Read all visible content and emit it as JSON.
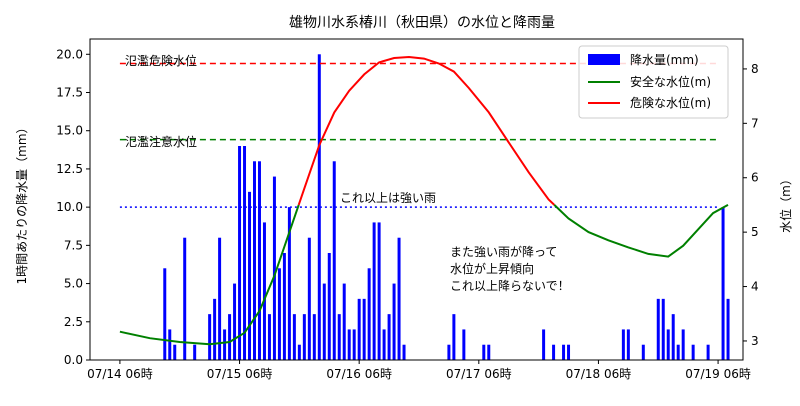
{
  "chart_data": {
    "type": "bar+line",
    "title": "雄物川水系椿川（秋田県）の水位と降雨量",
    "ylabel_left": "1時間あたりの降水量（mm）",
    "ylabel_right": "水位（m）",
    "ylim_left": [
      0,
      21
    ],
    "ylim_right": [
      2.65,
      8.55
    ],
    "xlim_hours": [
      -6,
      125
    ],
    "x_tick_labels": [
      "07/14 06時",
      "07/15 06時",
      "07/16 06時",
      "07/17 06時",
      "07/18 06時",
      "07/19 06時"
    ],
    "x_tick_hours": [
      0,
      24,
      48,
      72,
      96,
      120
    ],
    "yticks_left": [
      "0.0",
      "2.5",
      "5.0",
      "7.5",
      "10.0",
      "12.5",
      "15.0",
      "17.5",
      "20.0"
    ],
    "yticks_right": [
      "3",
      "4",
      "5",
      "6",
      "7",
      "8"
    ],
    "colors": {
      "rain": "#0000ff",
      "safe": "#008000",
      "danger": "#ff0000",
      "danger_line": "#ff0000",
      "caution_line": "#008000",
      "heavy_line": "#0000ff"
    },
    "rainfall_mm": [
      [
        9,
        6
      ],
      [
        10,
        2
      ],
      [
        11,
        1
      ],
      [
        13,
        8
      ],
      [
        15,
        1
      ],
      [
        18,
        3
      ],
      [
        19,
        4
      ],
      [
        20,
        8
      ],
      [
        21,
        2
      ],
      [
        22,
        3
      ],
      [
        23,
        5
      ],
      [
        24,
        14
      ],
      [
        25,
        14
      ],
      [
        26,
        11
      ],
      [
        27,
        13
      ],
      [
        28,
        13
      ],
      [
        29,
        9
      ],
      [
        30,
        3
      ],
      [
        31,
        12
      ],
      [
        32,
        6
      ],
      [
        33,
        7
      ],
      [
        34,
        10
      ],
      [
        35,
        3
      ],
      [
        36,
        1
      ],
      [
        37,
        3
      ],
      [
        38,
        8
      ],
      [
        39,
        3
      ],
      [
        40,
        20
      ],
      [
        41,
        5
      ],
      [
        42,
        7
      ],
      [
        43,
        13
      ],
      [
        44,
        3
      ],
      [
        45,
        5
      ],
      [
        46,
        2
      ],
      [
        47,
        2
      ],
      [
        48,
        4
      ],
      [
        49,
        4
      ],
      [
        50,
        6
      ],
      [
        51,
        9
      ],
      [
        52,
        9
      ],
      [
        53,
        2
      ],
      [
        54,
        3
      ],
      [
        55,
        5
      ],
      [
        56,
        8
      ],
      [
        57,
        1
      ],
      [
        66,
        1
      ],
      [
        67,
        3
      ],
      [
        69,
        2
      ],
      [
        73,
        1
      ],
      [
        74,
        1
      ],
      [
        85,
        2
      ],
      [
        87,
        1
      ],
      [
        89,
        1
      ],
      [
        90,
        1
      ],
      [
        101,
        2
      ],
      [
        102,
        2
      ],
      [
        105,
        1
      ],
      [
        108,
        4
      ],
      [
        109,
        4
      ],
      [
        110,
        2
      ],
      [
        111,
        3
      ],
      [
        112,
        1
      ],
      [
        113,
        2
      ],
      [
        115,
        1
      ],
      [
        118,
        1
      ],
      [
        121,
        10
      ],
      [
        122,
        4
      ]
    ],
    "water_level_m": [
      [
        0,
        3.17
      ],
      [
        6,
        3.05
      ],
      [
        12,
        2.98
      ],
      [
        18,
        2.94
      ],
      [
        22,
        2.98
      ],
      [
        25,
        3.15
      ],
      [
        28,
        3.55
      ],
      [
        31,
        4.2
      ],
      [
        34,
        5.0
      ],
      [
        37,
        5.8
      ],
      [
        40,
        6.6
      ],
      [
        43,
        7.2
      ],
      [
        46,
        7.6
      ],
      [
        49,
        7.9
      ],
      [
        52,
        8.12
      ],
      [
        55,
        8.2
      ],
      [
        58,
        8.22
      ],
      [
        61,
        8.19
      ],
      [
        64,
        8.1
      ],
      [
        67,
        7.95
      ],
      [
        70,
        7.65
      ],
      [
        74,
        7.2
      ],
      [
        78,
        6.65
      ],
      [
        82,
        6.1
      ],
      [
        86,
        5.6
      ],
      [
        90,
        5.25
      ],
      [
        94,
        5.0
      ],
      [
        98,
        4.85
      ],
      [
        102,
        4.72
      ],
      [
        106,
        4.6
      ],
      [
        110,
        4.55
      ],
      [
        113,
        4.75
      ],
      [
        116,
        5.05
      ],
      [
        119,
        5.35
      ],
      [
        122,
        5.5
      ]
    ],
    "level_split_m": 5.5,
    "thresholds": {
      "danger_level_m": 8.1,
      "caution_level_m": 6.7,
      "heavy_rain_mm": 10
    },
    "threshold_labels": {
      "danger": "氾濫危険水位",
      "caution": "氾濫注意水位",
      "heavy_rain": "これ以上は強い雨"
    },
    "annotation": [
      "また強い雨が降って",
      "水位が上昇傾向",
      "これ以上降らないで！"
    ],
    "legend": {
      "placement": "top-right",
      "items": [
        "降水量(mm)",
        "安全な水位(m)",
        "危険な水位(m)"
      ]
    }
  }
}
